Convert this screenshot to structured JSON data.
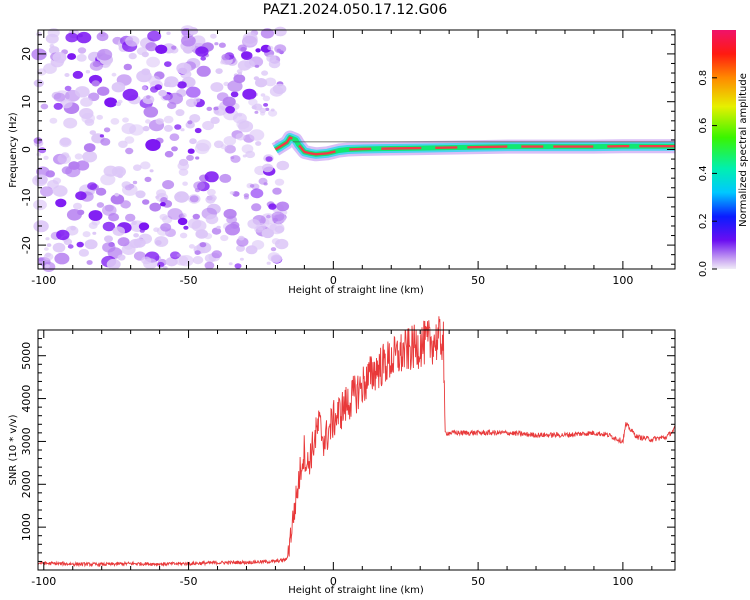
{
  "title": "PAZ1.2024.050.17.12.G06",
  "colors": {
    "snr_line": "#e8393a",
    "speckle_light": "#dcc6f7",
    "speckle_mid": "#b47df0",
    "speckle_dark": "#7a12f2",
    "strip_outer": "#4fd2f0",
    "strip_inner": "#10e873",
    "strip_core": "#f23a47"
  },
  "chart_data": [
    {
      "type": "heatmap",
      "name": "spectrogram",
      "xlabel": "Height of straight line (km)",
      "ylabel": "Frequency (Hz)",
      "xlim": [
        -102,
        118
      ],
      "ylim": [
        -25,
        25
      ],
      "xticks": [
        -100,
        -50,
        0,
        50,
        100
      ],
      "yticks": [
        20,
        10,
        0,
        -10,
        -20
      ],
      "xtick_labels": [
        "-100",
        "-50",
        "0",
        "50",
        "100"
      ],
      "ytick_labels": [
        "20",
        "10",
        "0",
        "-10",
        "-20"
      ],
      "noise_region_x": [
        -102,
        -17
      ],
      "signal_track": {
        "x": [
          -20,
          -16,
          -15,
          -13,
          -12,
          -10,
          -8,
          -6,
          -4,
          -2,
          0,
          2,
          5,
          10,
          20,
          30,
          40,
          50,
          60,
          70,
          80,
          90,
          100,
          110,
          118
        ],
        "freq": [
          0,
          1.5,
          2.5,
          2.0,
          1.0,
          -0.5,
          -0.8,
          -1.0,
          -0.9,
          -0.8,
          -0.5,
          -0.2,
          0.0,
          0.1,
          0.2,
          0.3,
          0.4,
          0.5,
          0.6,
          0.6,
          0.6,
          0.6,
          0.7,
          0.7,
          0.7
        ]
      },
      "colorbar": {
        "label": "Normalized spectral amplitude",
        "range": [
          0,
          1
        ],
        "ticks": [
          0.0,
          0.2,
          0.4,
          0.6,
          0.8
        ],
        "tick_labels": [
          "0.0",
          "0.2",
          "0.4",
          "0.6",
          "0.8"
        ]
      }
    },
    {
      "type": "line",
      "name": "snr",
      "xlabel": "Height of straight line (km)",
      "ylabel": "SNR (10 * v/v)",
      "xlim": [
        -102,
        118
      ],
      "ylim": [
        0,
        5600
      ],
      "xticks": [
        -100,
        -50,
        0,
        50,
        100
      ],
      "yticks": [
        1000,
        2000,
        3000,
        4000,
        5000
      ],
      "xtick_labels": [
        "-100",
        "-50",
        "0",
        "50",
        "100"
      ],
      "ytick_labels": [
        "1000",
        "2000",
        "3000",
        "4000",
        "5000"
      ],
      "x": [
        -102,
        -90,
        -80,
        -70,
        -60,
        -50,
        -40,
        -30,
        -20,
        -16,
        -11,
        -10,
        -9,
        -5,
        -3,
        0,
        5,
        10,
        15,
        20,
        25,
        30,
        35,
        38,
        38.5,
        40,
        50,
        60,
        70,
        80,
        90,
        95,
        100,
        101,
        105,
        110,
        115,
        118
      ],
      "y": [
        160,
        140,
        130,
        150,
        140,
        150,
        170,
        180,
        200,
        250,
        2500,
        2800,
        2400,
        3400,
        3000,
        3500,
        3900,
        4300,
        4700,
        4900,
        5100,
        5250,
        5350,
        5400,
        3200,
        3200,
        3200,
        3200,
        3150,
        3150,
        3200,
        3150,
        3000,
        3400,
        3100,
        3050,
        3100,
        3300
      ],
      "amplitude_jitter": "noisy"
    }
  ]
}
